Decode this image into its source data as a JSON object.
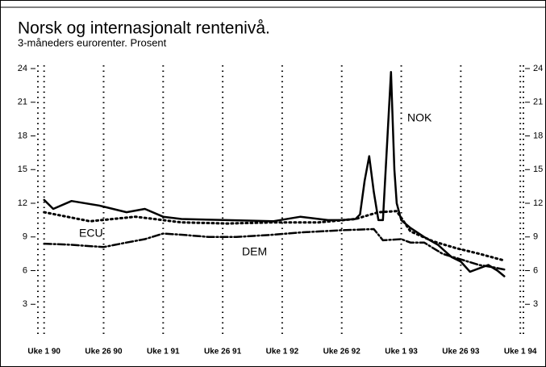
{
  "chart_data": {
    "type": "line",
    "title": "Norsk og internasjonalt rentenivå.",
    "subtitle": "3-måneders eurorenter. Prosent",
    "xlim": [
      -2,
      209
    ],
    "xticks": [
      {
        "value": 0,
        "label": "Uke 1 90"
      },
      {
        "value": 26,
        "label": "Uke 26 90"
      },
      {
        "value": 52,
        "label": "Uke 1 91"
      },
      {
        "value": 78,
        "label": "Uke 26 91"
      },
      {
        "value": 104,
        "label": "Uke 1 92"
      },
      {
        "value": 130,
        "label": "Uke 26 92"
      },
      {
        "value": 156,
        "label": "Uke 1 93"
      },
      {
        "value": 182,
        "label": "Uke 26 93"
      },
      {
        "value": 208,
        "label": "Uke 1 94"
      }
    ],
    "ylim": [
      0,
      24
    ],
    "yticks": [
      3,
      6,
      9,
      12,
      15,
      18,
      21,
      24
    ],
    "grid": true,
    "series": [
      {
        "name": "NOK",
        "color": "#000000",
        "style": "solid",
        "x": [
          0,
          4,
          12,
          24,
          36,
          44,
          52,
          60,
          80,
          100,
          112,
          124,
          130,
          136,
          138,
          140,
          142,
          144,
          146,
          148,
          150,
          151.5,
          153,
          154,
          156,
          160,
          166,
          172,
          178,
          182,
          186,
          190,
          194,
          198,
          201
        ],
        "values": [
          12.3,
          11.5,
          12.2,
          11.8,
          11.2,
          11.5,
          10.8,
          10.6,
          10.5,
          10.4,
          10.8,
          10.5,
          10.5,
          10.6,
          11,
          14,
          16.2,
          13,
          10.5,
          10.5,
          18,
          23.7,
          15,
          12,
          10.5,
          9.8,
          9.0,
          8.3,
          7.2,
          6.8,
          5.9,
          6.2,
          6.5,
          6.0,
          5.5
        ]
      },
      {
        "name": "ECU",
        "color": "#000000",
        "style": "dotted",
        "x": [
          0,
          20,
          40,
          60,
          80,
          100,
          120,
          136,
          146,
          154,
          160,
          170,
          180,
          190,
          201
        ],
        "values": [
          11.2,
          10.4,
          10.8,
          10.3,
          10.2,
          10.3,
          10.3,
          10.6,
          11.2,
          11.3,
          9.5,
          8.6,
          8.0,
          7.5,
          6.9
        ]
      },
      {
        "name": "DEM",
        "color": "#000000",
        "style": "dashdot",
        "x": [
          0,
          12,
          26,
          36,
          44,
          52,
          60,
          72,
          84,
          100,
          112,
          130,
          144,
          148,
          156,
          160,
          166,
          174,
          182,
          190,
          196,
          201
        ],
        "values": [
          8.4,
          8.3,
          8.1,
          8.5,
          8.8,
          9.3,
          9.2,
          9.0,
          9.0,
          9.2,
          9.4,
          9.6,
          9.7,
          8.7,
          8.8,
          8.5,
          8.5,
          7.5,
          7.0,
          6.5,
          6.3,
          6.1
        ]
      }
    ]
  }
}
